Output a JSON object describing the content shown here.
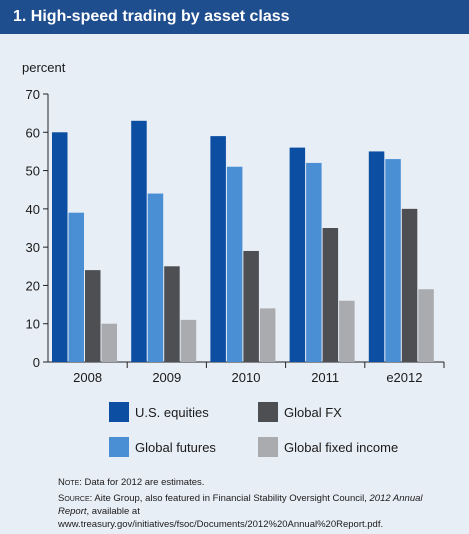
{
  "header": {
    "title": "1. High-speed trading by asset class"
  },
  "colors": {
    "header_bg": "#1f4e8f",
    "page_bg": "#e8eef6",
    "series": [
      "#0b4ea2",
      "#4a8fd3",
      "#4d4f53",
      "#a9abae"
    ]
  },
  "chart_data": {
    "type": "bar",
    "unit_label": "percent",
    "categories": [
      "2008",
      "2009",
      "2010",
      "2011",
      "e2012"
    ],
    "yticks": [
      "0",
      "10",
      "20",
      "30",
      "40",
      "50",
      "60",
      "70"
    ],
    "ylim": [
      0,
      70
    ],
    "grid": false,
    "legend_position": "bottom",
    "series": [
      {
        "name": "U.S. equities",
        "values": [
          60,
          63,
          59,
          56,
          55
        ]
      },
      {
        "name": "Global futures",
        "values": [
          39,
          44,
          51,
          52,
          53
        ]
      },
      {
        "name": "Global FX",
        "values": [
          24,
          25,
          29,
          35,
          40
        ]
      },
      {
        "name": "Global fixed income",
        "values": [
          10,
          11,
          14,
          16,
          19
        ]
      }
    ]
  },
  "notes": {
    "note_label": "Note:",
    "note_text": " Data for 2012 are estimates.",
    "source_label": "Source:",
    "source_text_1": " Aite Group, also featured in Financial Stability Oversight Council, ",
    "source_italic": "2012 Annual Report",
    "source_text_2": ", available at www.treasury.gov/initiatives/fsoc/Documents/2012%20Annual%20Report.pdf."
  }
}
